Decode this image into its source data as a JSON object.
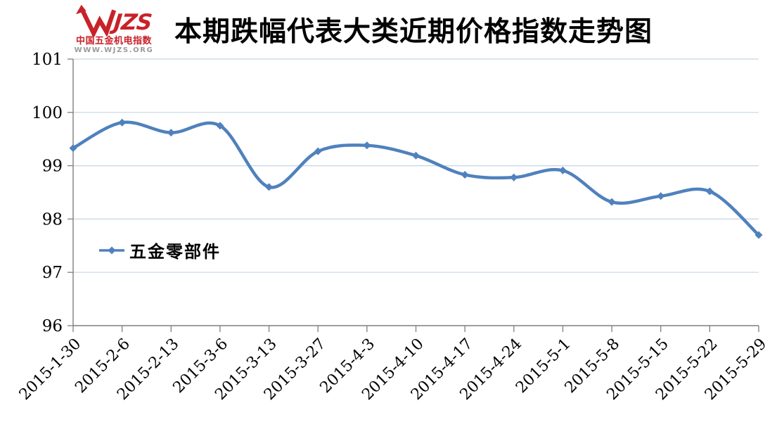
{
  "logo": {
    "brand_suffix": "JZS",
    "cn_line": "中国五金机电指数",
    "url_line": "WWW.WJZS.ORG"
  },
  "colors": {
    "line": "#4f81bd",
    "grid": "#c5d5e8",
    "axis": "#7f7f7f",
    "tick_label": "#000000",
    "logo_red": "#c92128",
    "logo_gray": "#9a9a9a"
  },
  "chart_data": {
    "type": "line",
    "title": "本期跌幅代表大类近期价格指数走势图",
    "categories": [
      "2015-1-30",
      "2015-2-6",
      "2015-2-13",
      "2015-3-6",
      "2015-3-13",
      "2015-3-27",
      "2015-4-3",
      "2015-4-10",
      "2015-4-17",
      "2015-4-24",
      "2015-5-1",
      "2015-5-8",
      "2015-5-15",
      "2015-5-22",
      "2015-5-29"
    ],
    "series": [
      {
        "name": "五金零部件",
        "values": [
          99.33,
          99.81,
          99.62,
          99.75,
          98.6,
          99.27,
          99.38,
          99.19,
          98.83,
          98.78,
          98.91,
          98.32,
          98.43,
          98.52,
          97.7
        ]
      }
    ],
    "xlabel": "",
    "ylabel": "",
    "ylim": [
      96,
      101
    ],
    "yticks": [
      96,
      97,
      98,
      99,
      100,
      101
    ],
    "grid": true,
    "smooth": true,
    "marker": "diamond",
    "legend_position": "inside-left"
  }
}
